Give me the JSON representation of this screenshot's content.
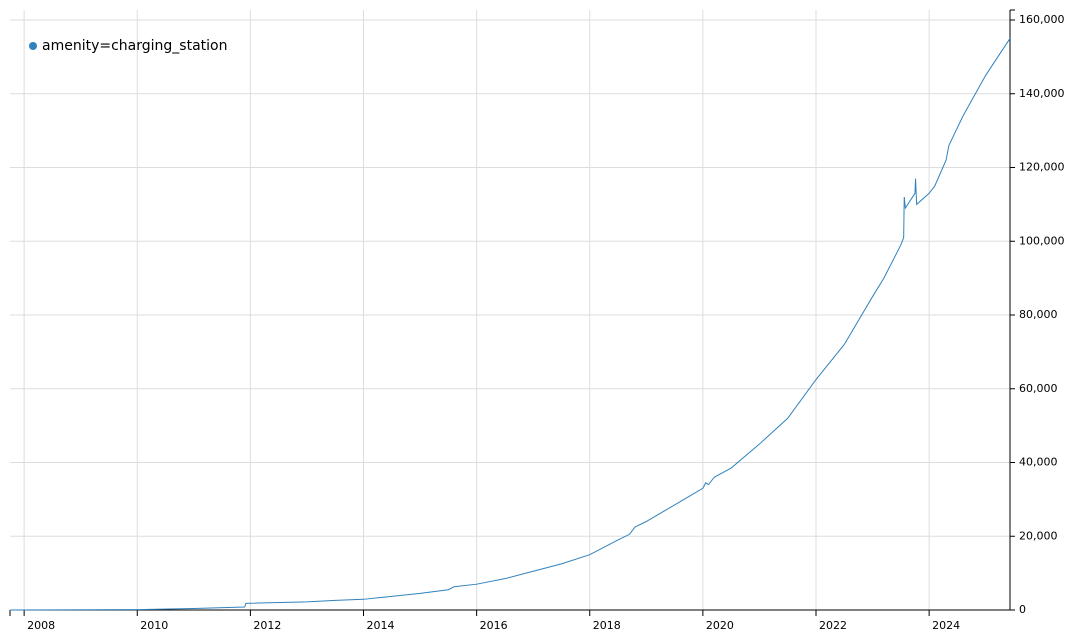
{
  "chart_data": {
    "type": "line",
    "x": [
      2007.75,
      2010,
      2011,
      2011.9,
      2011.92,
      2013,
      2013.5,
      2014,
      2015,
      2015.5,
      2015.6,
      2016,
      2016.5,
      2017,
      2017.5,
      2018,
      2018.5,
      2018.7,
      2018.8,
      2019,
      2019.5,
      2020,
      2020.05,
      2020.1,
      2020.2,
      2020.5,
      2021,
      2021.5,
      2022,
      2022.5,
      2023,
      2023.2,
      2023.5,
      2023.55,
      2023.56,
      2023.58,
      2023.75,
      2023.76,
      2023.78,
      2024,
      2024.1,
      2024.3,
      2024.35,
      2024.6,
      2025,
      2025.43
    ],
    "series": [
      {
        "name": "amenity=charging_station",
        "color": "#3182bd",
        "values": [
          0,
          100,
          400,
          800,
          1800,
          2200,
          2600,
          2900,
          4500,
          5500,
          6300,
          7000,
          8500,
          10500,
          12500,
          15000,
          19000,
          20500,
          22500,
          24000,
          28500,
          33000,
          34500,
          34000,
          36000,
          38500,
          45000,
          52000,
          62500,
          72000,
          85000,
          90000,
          99000,
          101000,
          112000,
          109000,
          113000,
          117000,
          110000,
          113000,
          115000,
          122000,
          126000,
          134000,
          145000,
          155000
        ]
      }
    ],
    "xlim": [
      2007.75,
      2025.43
    ],
    "xticks": [
      2008,
      2010,
      2012,
      2014,
      2016,
      2018,
      2020,
      2022,
      2024
    ],
    "ylim": [
      0,
      160000
    ],
    "yticks": [
      0,
      {
        "value": 20000,
        "label": "20,000"
      },
      {
        "value": 40000,
        "label": "40,000"
      },
      {
        "value": 60000,
        "label": "60,000"
      },
      {
        "value": 80000,
        "label": "80,000"
      },
      {
        "value": 100000,
        "label": "100,000"
      },
      {
        "value": 120000,
        "label": "120,000"
      },
      {
        "value": 140000,
        "label": "140,000"
      },
      {
        "value": 160000,
        "label": "160,000"
      }
    ],
    "grid": true,
    "legend": "top-left"
  }
}
